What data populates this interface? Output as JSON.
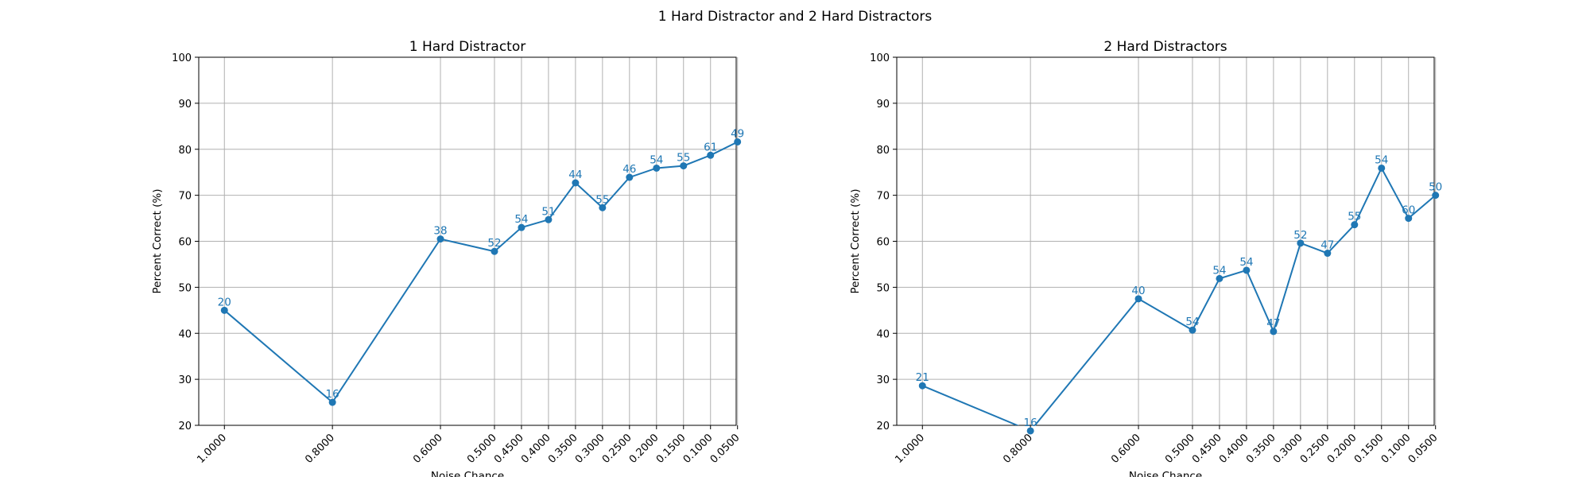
{
  "figure_title": "1 Hard Distractor and 2 Hard Distractors",
  "colors": {
    "series": "#1f77b4",
    "grid": "#b0b0b0",
    "axes": "#000000"
  },
  "chart_data": [
    {
      "type": "line",
      "title": "1 Hard Distractor",
      "xlabel": "Noise Chance",
      "ylabel": "Percent Correct (%)",
      "ylim": [
        20,
        100
      ],
      "yticks": [
        20,
        30,
        40,
        50,
        60,
        70,
        80,
        90,
        100
      ],
      "grid": true,
      "x": [
        "1.0000",
        "0.8000",
        "0.6000",
        "0.5000",
        "0.4500",
        "0.4000",
        "0.3500",
        "0.3000",
        "0.2500",
        "0.2000",
        "0.1500",
        "0.1000",
        "0.0500"
      ],
      "y": [
        45,
        25,
        60.5,
        57.8,
        63,
        64.7,
        72.7,
        67.3,
        73.9,
        75.9,
        76.4,
        78.7,
        81.6
      ],
      "point_labels": [
        "20",
        "16",
        "38",
        "52",
        "54",
        "51",
        "44",
        "55",
        "46",
        "54",
        "55",
        "61",
        "49"
      ]
    },
    {
      "type": "line",
      "title": "2 Hard Distractors",
      "xlabel": "Noise Chance",
      "ylabel": "Percent Correct (%)",
      "ylim": [
        20,
        100
      ],
      "yticks": [
        20,
        30,
        40,
        50,
        60,
        70,
        80,
        90,
        100
      ],
      "grid": true,
      "x": [
        "1.0000",
        "0.8000",
        "0.6000",
        "0.5000",
        "0.4500",
        "0.4000",
        "0.3500",
        "0.3000",
        "0.2500",
        "0.2000",
        "0.1500",
        "0.1000",
        "0.0500"
      ],
      "y": [
        28.6,
        18.8,
        47.5,
        40.7,
        51.9,
        53.7,
        40.4,
        59.6,
        57.4,
        63.6,
        75.9,
        65,
        70
      ],
      "point_labels": [
        "21",
        "16",
        "40",
        "54",
        "54",
        "54",
        "47",
        "52",
        "47",
        "55",
        "54",
        "60",
        "50"
      ]
    }
  ]
}
